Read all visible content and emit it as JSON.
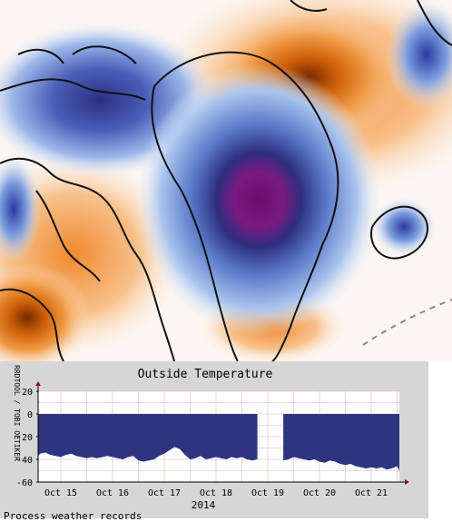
{
  "graph": {
    "watermark": "RRDTOOL / TOBI OETIKER",
    "footer_text": "Process weather records"
  },
  "chart_data": {
    "type": "area",
    "title": "Outside Temperature",
    "xlabel": "2014",
    "ylabel": "",
    "ylim": [
      -60,
      20
    ],
    "yticks": [
      "20",
      "0",
      "-20",
      "-40",
      "-60"
    ],
    "xticks": [
      "Oct 15",
      "Oct 16",
      "Oct 17",
      "Oct 18",
      "Oct 19",
      "Oct 20",
      "Oct 21"
    ],
    "grid": true,
    "fill_color": "#2d3580",
    "series": [
      {
        "values_day_offset_from_oct15": [
          -0.5,
          -0.4,
          -0.3,
          -0.2,
          -0.1,
          0,
          0.1,
          0.2,
          0.3,
          0.4,
          0.5,
          0.6,
          0.7,
          0.8,
          0.9,
          1,
          1.1,
          1.2,
          1.3,
          1.4,
          1.5,
          1.6,
          1.7,
          1.8,
          1.9,
          2,
          2.1,
          2.2,
          2.3,
          2.4,
          2.5,
          2.6,
          2.7,
          2.8,
          2.9,
          3,
          3.1,
          3.2,
          3.3,
          3.4,
          3.5,
          3.6,
          3.7,
          3.8
        ],
        "y": [
          -37,
          -35,
          -34,
          -36,
          -37,
          -38,
          -36,
          -35,
          -37,
          -38,
          -39,
          -38,
          -39,
          -38,
          -37,
          -38,
          -39,
          -40,
          -38,
          -37,
          -41,
          -42,
          -41,
          -40,
          -37,
          -35,
          -32,
          -29,
          -31,
          -36,
          -40,
          -39,
          -37,
          -40,
          -39,
          -38,
          -39,
          -40,
          -38,
          -39,
          -38,
          -40,
          -41,
          -40
        ]
      },
      {
        "values_day_offset_from_oct15": [
          4.3,
          4.4,
          4.5,
          4.6,
          4.7,
          4.8,
          4.9,
          5,
          5.1,
          5.2,
          5.3,
          5.4,
          5.5,
          5.6,
          5.7,
          5.8,
          5.9,
          6,
          6.1,
          6.2,
          6.3,
          6.4,
          6.5,
          6.6,
          6.7,
          6.8,
          6.9,
          7,
          7.1,
          7.2
        ],
        "y": [
          -41,
          -40,
          -38,
          -39,
          -40,
          -41,
          -40,
          -42,
          -43,
          -41,
          -42,
          -44,
          -45,
          -44,
          -46,
          -47,
          -48,
          -47,
          -48,
          -47,
          -49,
          -48,
          -46,
          -50,
          -51,
          -49,
          -47,
          -45,
          -44,
          -40
        ]
      }
    ]
  }
}
